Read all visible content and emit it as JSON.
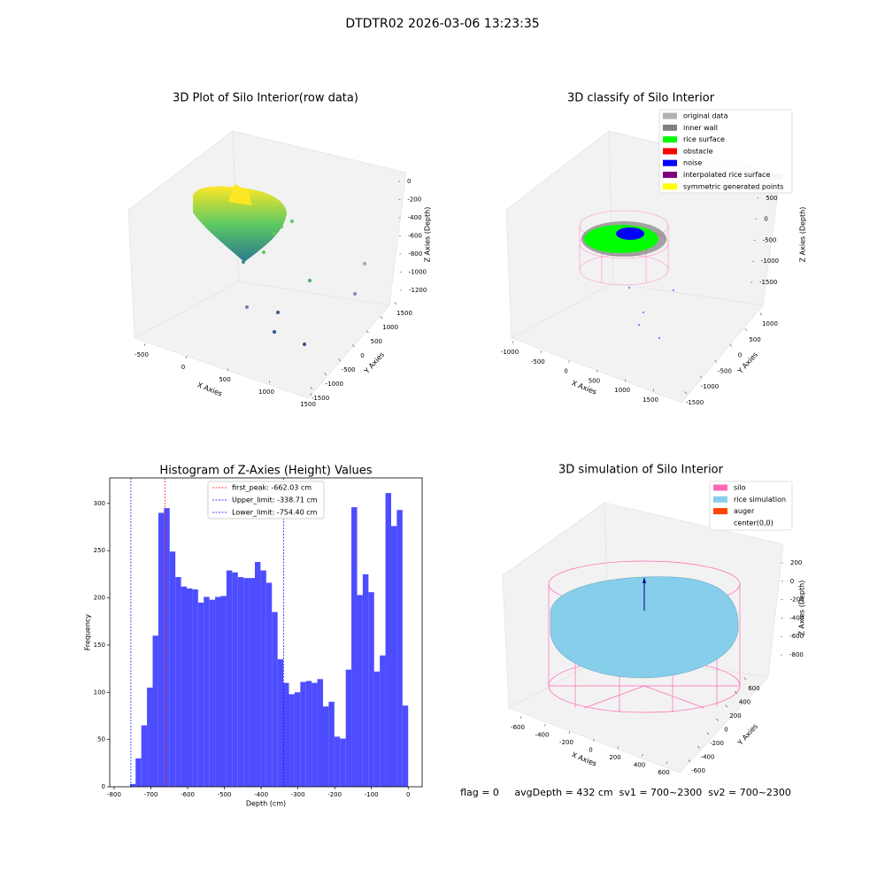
{
  "title": "DTDTR02 2026-03-06 13:23:35",
  "chart_data": [
    {
      "type": "3d",
      "title": "3D Plot of Silo Interior(row data)",
      "xlabel": "X Axies",
      "ylabel": "Y Axies",
      "zlabel": "Z Axies (Depth)",
      "xticks": [
        -500,
        0,
        500,
        1000,
        1500
      ],
      "yticks": [
        -1500,
        -1000,
        -500,
        0,
        500,
        1000,
        1500
      ],
      "zticks": [
        0,
        -200,
        -400,
        -600,
        -800,
        -1000,
        -1200
      ]
    },
    {
      "type": "3d",
      "title": "3D classify of Silo Interior",
      "xlabel": "X Axies",
      "ylabel": "Y Axies",
      "zlabel": "Z Axies (Depth)",
      "xticks": [
        -1000,
        -500,
        0,
        500,
        1000,
        1500
      ],
      "yticks": [
        -1500,
        -1000,
        -500,
        0,
        500,
        1000
      ],
      "zticks": [
        1000,
        500,
        0,
        -500,
        -1000,
        -1500
      ],
      "legend": [
        {
          "name": "original data",
          "color": "#b0b0b0"
        },
        {
          "name": "inner wall",
          "color": "#808080"
        },
        {
          "name": "rice surface",
          "color": "#00ff00"
        },
        {
          "name": "obstacle",
          "color": "#ff0000"
        },
        {
          "name": "noise",
          "color": "#0000ff"
        },
        {
          "name": "interpolated rice surface",
          "color": "#800080"
        },
        {
          "name": "symmetric generated points",
          "color": "#ffff00"
        }
      ]
    },
    {
      "type": "histogram",
      "title": "Histogram of Z-Axies (Height) Values",
      "xlabel": "Depth (cm)",
      "ylabel": "Frequency",
      "color": "#4d4dff",
      "bins": [
        -757.0,
        -741.6,
        -726.1,
        -710.7,
        -695.2,
        -679.8,
        -664.3,
        -648.9,
        -633.4,
        -618.0,
        -602.5,
        -587.1,
        -571.6,
        -556.2,
        -540.7,
        -525.3,
        -509.8,
        -494.4,
        -478.9,
        -463.5,
        -448.0,
        -432.6,
        -417.1,
        -401.7,
        -386.2,
        -370.8,
        -355.3,
        -339.9,
        -324.4,
        -309.0,
        -293.5,
        -278.1,
        -262.6,
        -247.2,
        -231.7,
        -216.3,
        -200.8,
        -185.4,
        -169.9,
        -154.5,
        -139.0,
        -123.6,
        -108.1,
        -92.7,
        -77.2,
        -61.8,
        -46.3,
        -30.9,
        -15.4,
        0.0
      ],
      "counts": [
        3,
        30,
        65,
        105,
        160,
        290,
        295,
        249,
        222,
        212,
        210,
        209,
        195,
        201,
        198,
        201,
        202,
        229,
        227,
        222,
        221,
        221,
        238,
        229,
        216,
        185,
        135,
        110,
        98,
        100,
        111,
        112,
        110,
        114,
        85,
        90,
        53,
        51,
        124,
        296,
        203,
        225,
        206,
        122,
        139,
        311,
        276,
        293,
        86
      ],
      "xlim": [
        -812,
        38
      ],
      "ylim": [
        0,
        327
      ],
      "xticks": [
        -800,
        -700,
        -600,
        -500,
        -400,
        -300,
        -200,
        -100,
        0
      ],
      "yticks": [
        0,
        50,
        100,
        150,
        200,
        250,
        300
      ],
      "lines": [
        {
          "name": "first_peak: -662.03 cm",
          "value": -662.03,
          "color": "#ff0000"
        },
        {
          "name": "Upper_limit: -338.71 cm",
          "value": -338.71,
          "color": "#0000ff"
        },
        {
          "name": "Lower_limit: -754.40 cm",
          "value": -754.4,
          "color": "#0000ff"
        }
      ]
    },
    {
      "type": "3d",
      "title": "3D simulation of Silo Interior",
      "xlabel": "X Axies",
      "ylabel": "Y Axies",
      "zlabel": "Z Axies (Depth)",
      "xticks": [
        -600,
        -400,
        -200,
        0,
        200,
        400,
        600
      ],
      "yticks": [
        -600,
        -400,
        -200,
        0,
        200,
        400,
        600
      ],
      "zticks": [
        200,
        0,
        -200,
        -400,
        -600,
        -800
      ],
      "legend": [
        {
          "name": "silo",
          "color": "#ff69b4"
        },
        {
          "name": "rice simulation",
          "color": "#87ceeb"
        },
        {
          "name": "auger",
          "color": "#ff4500"
        },
        {
          "name": "center(0,0)",
          "color": "none"
        }
      ],
      "annotation": "flag = 0     avgDepth = 432 cm  sv1 = 700~2300  sv2 = 700~2300"
    }
  ]
}
